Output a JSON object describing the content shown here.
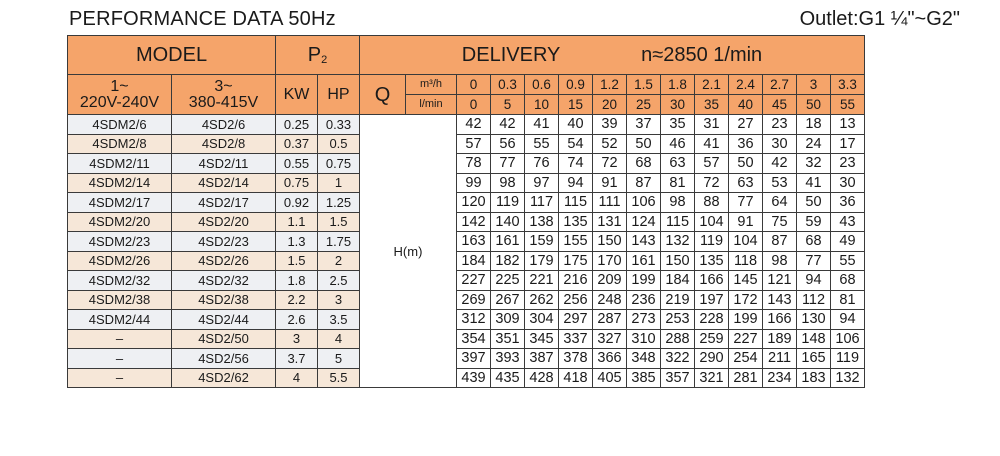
{
  "title": "PERFORMANCE DATA 50Hz",
  "outlet": "Outlet:G1 ¼\"~G2\"",
  "header": {
    "model": "MODEL",
    "p2": "P",
    "p2_sub": "2",
    "delivery": "DELIVERY",
    "speed": "n≈2850  1/min",
    "single_phase": "1~",
    "single_phase_v": "220V-240V",
    "three_phase": "3~",
    "three_phase_v": "380-415V",
    "kw": "KW",
    "hp": "HP",
    "q": "Q",
    "unit_m3h": "m³/h",
    "unit_lmin": "l/min",
    "head": "H(m)"
  },
  "flow_m3h": [
    "0",
    "0.3",
    "0.6",
    "0.9",
    "1.2",
    "1.5",
    "1.8",
    "2.1",
    "2.4",
    "2.7",
    "3",
    "3.3"
  ],
  "flow_lmin": [
    "0",
    "5",
    "10",
    "15",
    "20",
    "25",
    "30",
    "35",
    "40",
    "45",
    "50",
    "55"
  ],
  "rows": [
    {
      "m1": "4SDM2/6",
      "m3": "4SD2/6",
      "kw": "0.25",
      "hp": "0.33",
      "h": [
        "42",
        "42",
        "41",
        "40",
        "39",
        "37",
        "35",
        "31",
        "27",
        "23",
        "18",
        "13"
      ]
    },
    {
      "m1": "4SDM2/8",
      "m3": "4SD2/8",
      "kw": "0.37",
      "hp": "0.5",
      "h": [
        "57",
        "56",
        "55",
        "54",
        "52",
        "50",
        "46",
        "41",
        "36",
        "30",
        "24",
        "17"
      ]
    },
    {
      "m1": "4SDM2/11",
      "m3": "4SD2/11",
      "kw": "0.55",
      "hp": "0.75",
      "h": [
        "78",
        "77",
        "76",
        "74",
        "72",
        "68",
        "63",
        "57",
        "50",
        "42",
        "32",
        "23"
      ]
    },
    {
      "m1": "4SDM2/14",
      "m3": "4SD2/14",
      "kw": "0.75",
      "hp": "1",
      "h": [
        "99",
        "98",
        "97",
        "94",
        "91",
        "87",
        "81",
        "72",
        "63",
        "53",
        "41",
        "30"
      ]
    },
    {
      "m1": "4SDM2/17",
      "m3": "4SD2/17",
      "kw": "0.92",
      "hp": "1.25",
      "h": [
        "120",
        "119",
        "117",
        "115",
        "111",
        "106",
        "98",
        "88",
        "77",
        "64",
        "50",
        "36"
      ]
    },
    {
      "m1": "4SDM2/20",
      "m3": "4SD2/20",
      "kw": "1.1",
      "hp": "1.5",
      "h": [
        "142",
        "140",
        "138",
        "135",
        "131",
        "124",
        "115",
        "104",
        "91",
        "75",
        "59",
        "43"
      ]
    },
    {
      "m1": "4SDM2/23",
      "m3": "4SD2/23",
      "kw": "1.3",
      "hp": "1.75",
      "h": [
        "163",
        "161",
        "159",
        "155",
        "150",
        "143",
        "132",
        "119",
        "104",
        "87",
        "68",
        "49"
      ]
    },
    {
      "m1": "4SDM2/26",
      "m3": "4SD2/26",
      "kw": "1.5",
      "hp": "2",
      "h": [
        "184",
        "182",
        "179",
        "175",
        "170",
        "161",
        "150",
        "135",
        "118",
        "98",
        "77",
        "55"
      ]
    },
    {
      "m1": "4SDM2/32",
      "m3": "4SD2/32",
      "kw": "1.8",
      "hp": "2.5",
      "h": [
        "227",
        "225",
        "221",
        "216",
        "209",
        "199",
        "184",
        "166",
        "145",
        "121",
        "94",
        "68"
      ]
    },
    {
      "m1": "4SDM2/38",
      "m3": "4SD2/38",
      "kw": "2.2",
      "hp": "3",
      "h": [
        "269",
        "267",
        "262",
        "256",
        "248",
        "236",
        "219",
        "197",
        "172",
        "143",
        "112",
        "81"
      ]
    },
    {
      "m1": "4SDM2/44",
      "m3": "4SD2/44",
      "kw": "2.6",
      "hp": "3.5",
      "h": [
        "312",
        "309",
        "304",
        "297",
        "287",
        "273",
        "253",
        "228",
        "199",
        "166",
        "130",
        "94"
      ]
    },
    {
      "m1": "–",
      "m3": "4SD2/50",
      "kw": "3",
      "hp": "4",
      "h": [
        "354",
        "351",
        "345",
        "337",
        "327",
        "310",
        "288",
        "259",
        "227",
        "189",
        "148",
        "106"
      ]
    },
    {
      "m1": "–",
      "m3": "4SD2/56",
      "kw": "3.7",
      "hp": "5",
      "h": [
        "397",
        "393",
        "387",
        "378",
        "366",
        "348",
        "322",
        "290",
        "254",
        "211",
        "165",
        "119"
      ]
    },
    {
      "m1": "–",
      "m3": "4SD2/62",
      "kw": "4",
      "hp": "5.5",
      "h": [
        "439",
        "435",
        "428",
        "418",
        "405",
        "385",
        "357",
        "321",
        "281",
        "234",
        "183",
        "132"
      ]
    }
  ]
}
